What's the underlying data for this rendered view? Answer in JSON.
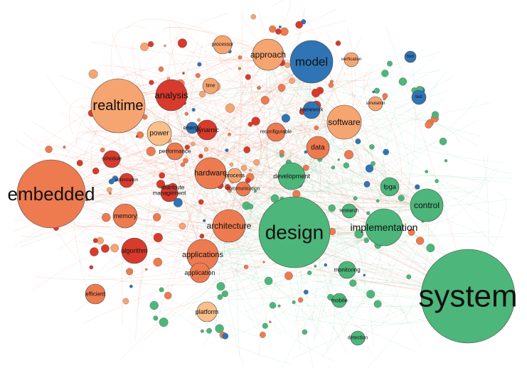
{
  "colors": {
    "red": "#d83a2c",
    "orange": "#ee7a50",
    "light_orange": "#f6a470",
    "pale_orange": "#fbbf8a",
    "blue": "#2f74b5",
    "green": "#4db67a",
    "edge_red": "#e05a40",
    "edge_green": "#5fbf86",
    "background": "#ffffff"
  },
  "labeled_nodes": [
    {
      "id": "system",
      "label": "system",
      "group": "green"
    },
    {
      "id": "design",
      "label": "design",
      "group": "green"
    },
    {
      "id": "embedded",
      "label": "embedded",
      "group": "orange"
    },
    {
      "id": "realtime",
      "label": "realtime",
      "group": "light_orange"
    },
    {
      "id": "model",
      "label": "model",
      "group": "blue"
    },
    {
      "id": "implementation",
      "label": "implementation",
      "group": "green"
    },
    {
      "id": "analysis",
      "label": "analysis",
      "group": "red"
    },
    {
      "id": "software",
      "label": "software",
      "group": "light_orange"
    },
    {
      "id": "architecture",
      "label": "architecture",
      "group": "orange"
    },
    {
      "id": "control",
      "label": "control",
      "group": "green"
    },
    {
      "id": "approach",
      "label": "approach",
      "group": "light_orange"
    },
    {
      "id": "applications",
      "label": "applications",
      "group": "orange"
    },
    {
      "id": "hardware",
      "label": "hardware",
      "group": "orange"
    },
    {
      "id": "development",
      "label": "development",
      "group": "green"
    },
    {
      "id": "power",
      "label": "power",
      "group": "pale_orange"
    },
    {
      "id": "data",
      "label": "data",
      "group": "orange"
    },
    {
      "id": "memory",
      "label": "memory",
      "group": "orange"
    },
    {
      "id": "algorithm",
      "label": "algorithm",
      "group": "red"
    },
    {
      "id": "fpga",
      "label": "fpga",
      "group": "green"
    },
    {
      "id": "efficient",
      "label": "efficient",
      "group": "orange"
    },
    {
      "id": "application",
      "label": "application",
      "group": "orange"
    },
    {
      "id": "platform",
      "label": "platform",
      "group": "pale_orange"
    },
    {
      "id": "dynamic",
      "label": "dynamic",
      "group": "red"
    },
    {
      "id": "performance",
      "label": "performance",
      "group": "orange"
    },
    {
      "id": "process",
      "label": "process",
      "group": "light_orange"
    },
    {
      "id": "management",
      "label": "management",
      "group": "red"
    },
    {
      "id": "distribute",
      "label": "distribute",
      "group": "red"
    },
    {
      "id": "communication",
      "label": "communication",
      "group": "orange"
    },
    {
      "id": "reconfigurable",
      "label": "reconfigurable",
      "group": "orange"
    },
    {
      "id": "research",
      "label": "research",
      "group": "green"
    },
    {
      "id": "monitoring",
      "label": "monitoring",
      "group": "green"
    },
    {
      "id": "mobile",
      "label": "mobile",
      "group": "green"
    },
    {
      "id": "detection",
      "label": "detection",
      "group": "green"
    },
    {
      "id": "processor",
      "label": "processor",
      "group": "light_orange"
    },
    {
      "id": "framework",
      "label": "framework",
      "group": "blue"
    },
    {
      "id": "schedule",
      "label": "schedule",
      "group": "red"
    },
    {
      "id": "energy",
      "label": "energy",
      "group": "blue"
    },
    {
      "id": "time",
      "label": "time",
      "group": "light_orange"
    },
    {
      "id": "verification",
      "label": "verification",
      "group": "light_orange"
    },
    {
      "id": "simulation",
      "label": "simulation",
      "group": "light_orange"
    },
    {
      "id": "tool",
      "label": "tool",
      "group": "blue"
    },
    {
      "id": "test",
      "label": "test",
      "group": "blue"
    },
    {
      "id": "optimization",
      "label": "optimization",
      "group": "red"
    }
  ]
}
